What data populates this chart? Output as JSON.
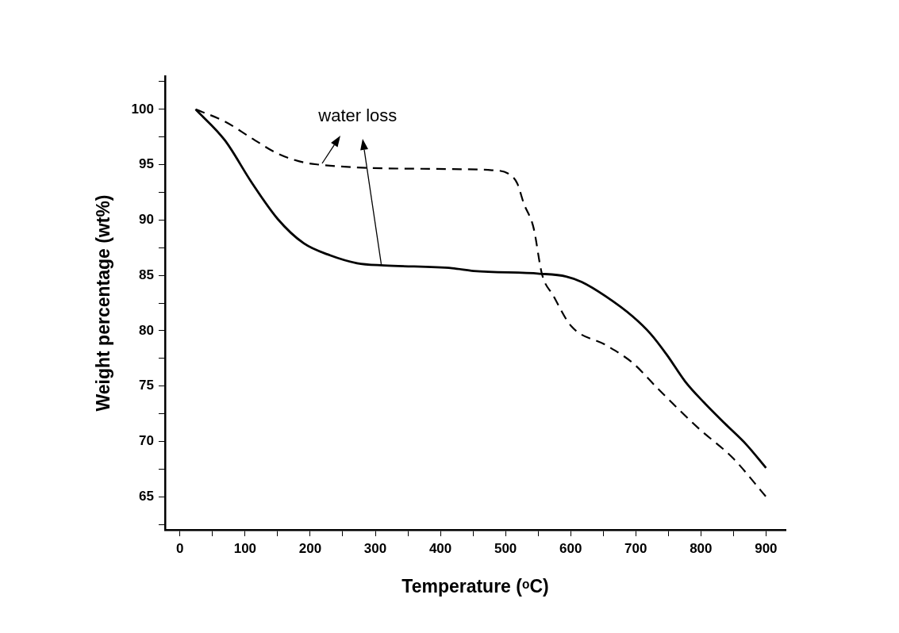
{
  "chart_data": {
    "type": "line",
    "xlabel": "Temperature (ᵒC)",
    "ylabel": "Weight percentage (wt%)",
    "xlim": [
      -23,
      930
    ],
    "ylim": [
      62,
      103
    ],
    "xticks": [
      0,
      {
        "value": 50,
        "label": null
      },
      100,
      {
        "value": 150,
        "label": null
      },
      200,
      {
        "value": 250,
        "label": null
      },
      300,
      {
        "value": 350,
        "label": null
      },
      400,
      {
        "value": 450,
        "label": null
      },
      500,
      {
        "value": 550,
        "label": null
      },
      600,
      {
        "value": 650,
        "label": null
      },
      700,
      {
        "value": 750,
        "label": null
      },
      800,
      {
        "value": 850,
        "label": null
      },
      900
    ],
    "yticks": [
      {
        "value": 62.5,
        "label": null
      },
      65,
      {
        "value": 67.5,
        "label": null
      },
      70,
      {
        "value": 72.5,
        "label": null
      },
      75,
      {
        "value": 77.5,
        "label": null
      },
      80,
      {
        "value": 82.5,
        "label": null
      },
      85,
      {
        "value": 87.5,
        "label": null
      },
      90,
      {
        "value": 92.5,
        "label": null
      },
      95,
      {
        "value": 97.5,
        "label": null
      },
      100,
      {
        "value": 102.5,
        "label": null
      }
    ],
    "grid": false,
    "marker": "none",
    "annotations": [
      {
        "text": "water loss",
        "x": 215,
        "y": 95
      }
    ],
    "series": [
      {
        "color": "#000000",
        "line_style": "solid",
        "x": [
          24,
          69,
          110,
          150,
          190,
          231,
          272,
          313,
          418,
          451,
          552,
          593,
          617,
          654,
          695,
          723,
          748,
          776,
          805,
          837,
          870,
          900
        ],
        "values": [
          100,
          97.2,
          93.4,
          90.1,
          87.9,
          86.8,
          86.1,
          85.9,
          85.65,
          85.4,
          85.15,
          84.9,
          84.4,
          83.1,
          81.3,
          79.7,
          77.8,
          75.4,
          73.5,
          71.6,
          69.7,
          67.6
        ]
      },
      {
        "color": "#000000",
        "line_style": "dashed",
        "x": [
          24,
          69,
          110,
          150,
          190,
          215,
          272,
          418,
          479,
          504,
          518,
          528,
          543,
          556,
          573,
          601,
          654,
          695,
          735,
          796,
          849,
          900
        ],
        "values": [
          100,
          98.9,
          97.4,
          96.0,
          95.2,
          95.0,
          94.75,
          94.6,
          94.5,
          94.2,
          93.3,
          91.5,
          89.3,
          85.1,
          83.2,
          80.4,
          78.7,
          77.1,
          74.7,
          71.2,
          68.5,
          65.0
        ]
      }
    ]
  }
}
